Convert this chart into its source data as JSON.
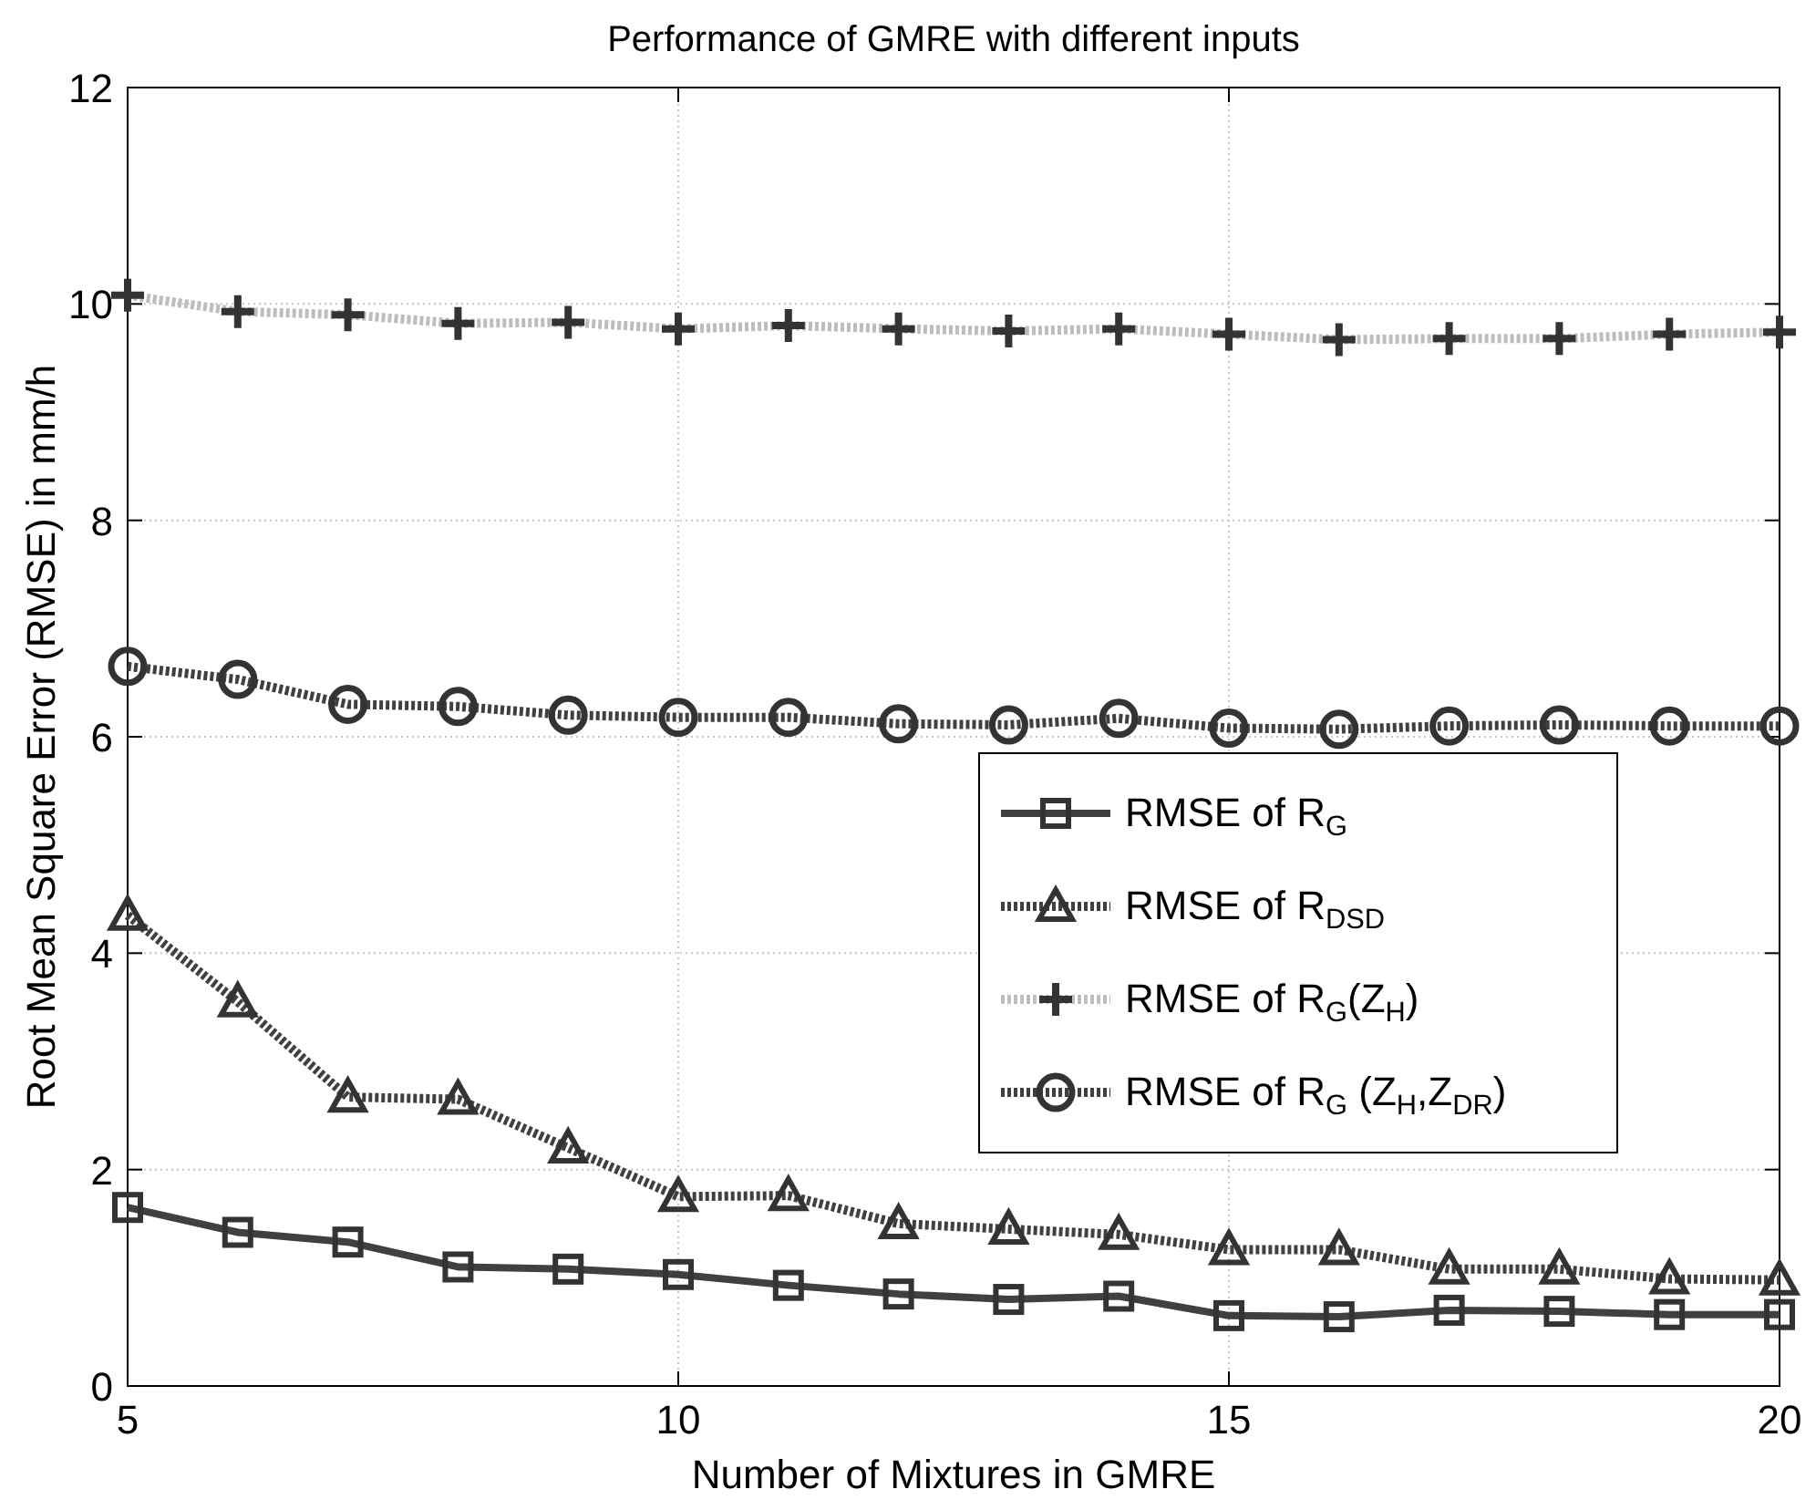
{
  "chart_data": {
    "type": "line",
    "title": "Performance of GMRE with different inputs",
    "xlabel": "Number of Mixtures in GMRE",
    "ylabel": "Root Mean Square Error (RMSE) in mm/h",
    "x": [
      5,
      6,
      7,
      8,
      9,
      10,
      11,
      12,
      13,
      14,
      15,
      16,
      17,
      18,
      19,
      20
    ],
    "xlim": [
      5,
      20
    ],
    "xticks": [
      5,
      10,
      15,
      20
    ],
    "ylim": [
      0,
      12
    ],
    "yticks": [
      0,
      2,
      4,
      6,
      8,
      10,
      12
    ],
    "grid": true,
    "legend": "right",
    "series": [
      {
        "name": "RMSE of R$_{G}$",
        "color": "#404040",
        "marker": "square",
        "line_style": "solid",
        "values": [
          1.65,
          1.42,
          1.33,
          1.1,
          1.08,
          1.03,
          0.93,
          0.85,
          0.8,
          0.83,
          0.65,
          0.64,
          0.7,
          0.69,
          0.66,
          0.66
        ]
      },
      {
        "name": "RMSE of R$_{DSD}$",
        "color": "#404040",
        "marker": "triangle",
        "line_style": "dotted",
        "values": [
          4.35,
          3.55,
          2.67,
          2.65,
          2.2,
          1.75,
          1.76,
          1.5,
          1.45,
          1.4,
          1.26,
          1.26,
          1.08,
          1.08,
          0.99,
          0.98
        ]
      },
      {
        "name": "RMSE of R$_{G}$(Z$_{H}$)",
        "color": "#bdbdbd",
        "marker": "cross",
        "line_style": "dotted",
        "values": [
          10.08,
          9.93,
          9.9,
          9.82,
          9.83,
          9.77,
          9.8,
          9.77,
          9.75,
          9.77,
          9.72,
          9.67,
          9.68,
          9.68,
          9.72,
          9.74
        ]
      },
      {
        "name": "RMSE of R$_{G}$ (Z$_{H}$,Z$_{DR}$)",
        "color": "#404040",
        "marker": "circle",
        "line_style": "dotted",
        "values": [
          6.65,
          6.53,
          6.3,
          6.28,
          6.2,
          6.18,
          6.18,
          6.12,
          6.11,
          6.17,
          6.08,
          6.07,
          6.1,
          6.11,
          6.1,
          6.1
        ]
      }
    ]
  }
}
